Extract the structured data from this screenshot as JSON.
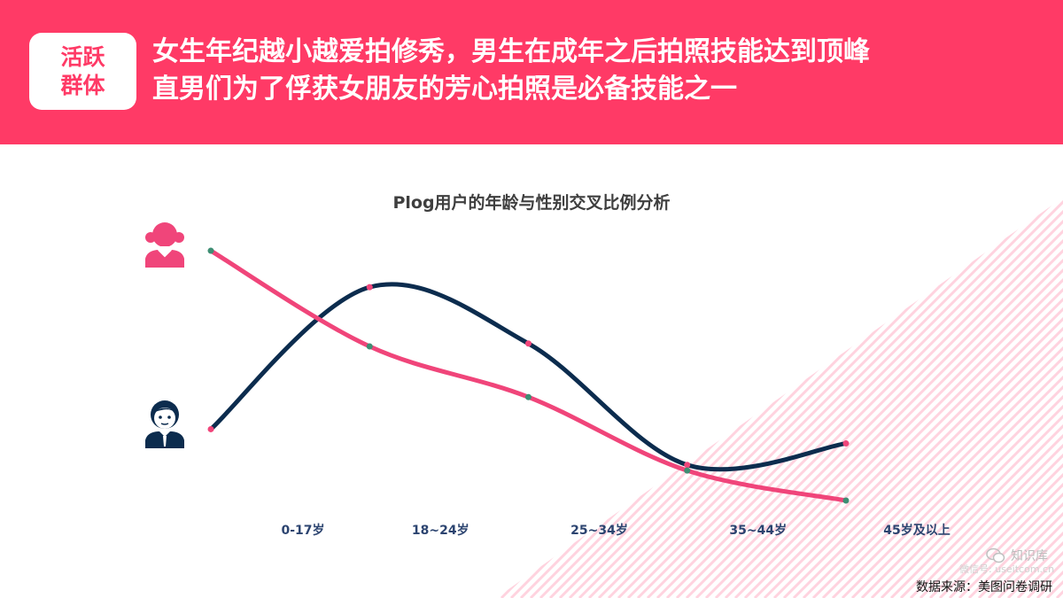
{
  "header": {
    "tag_line1": "活跃",
    "tag_line2": "群体",
    "headline_line1": "女生年纪越小越爱拍修秀，男生在成年之后拍照技能达到顶峰",
    "headline_line2": "直男们为了俘获女朋友的芳心拍照是必备技能之一"
  },
  "chart_data": {
    "type": "line",
    "title": "Plog用户的年龄与性别交叉比例分析",
    "categories": [
      "0-17岁",
      "18~24岁",
      "25~34岁",
      "35~44岁",
      "45岁及以上"
    ],
    "series": [
      {
        "icon": "female-user-icon",
        "color": "#F0457A",
        "values": [
          35.0,
          21.6,
          14.5,
          4.2,
          0.0
        ]
      },
      {
        "icon": "male-user-icon",
        "color": "#0C2C4E",
        "values": [
          10.0,
          29.9,
          22.0,
          5.0,
          8.0
        ]
      }
    ],
    "marker_colors": {
      "on_female_line": "#3E8E73",
      "on_male_line": "#F0457A"
    },
    "ylim": [
      0,
      36
    ],
    "grid": false,
    "legend": "left-icons"
  },
  "watermark": {
    "icon": "wechat-icon",
    "name": "知识库",
    "url": "微信号: useitcom.cn"
  },
  "footer": {
    "source": "数据来源：美图问卷调研"
  },
  "colors": {
    "accent": "#FF3A66",
    "stripe": "#FFD3DF"
  }
}
